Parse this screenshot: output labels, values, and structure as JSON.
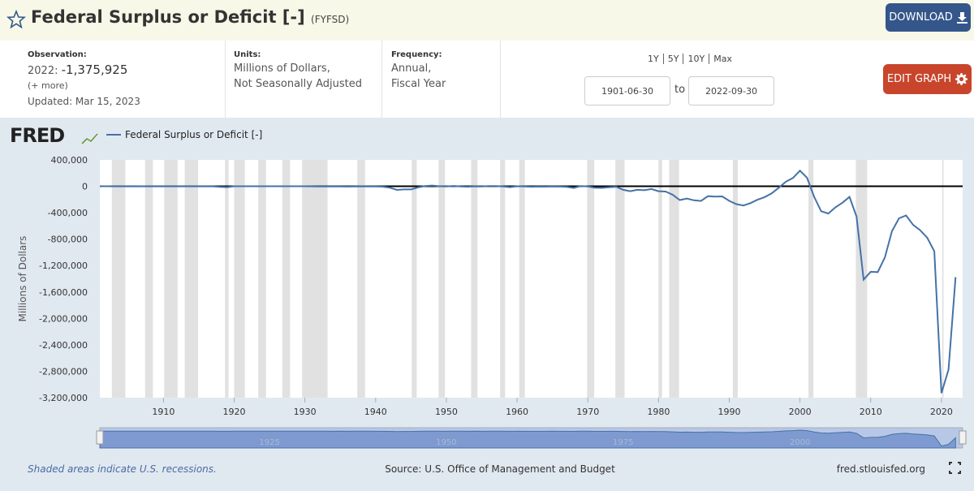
{
  "header": {
    "title": "Federal Surplus or Deficit [-]",
    "series_id": "(FYFSD)",
    "download": "DOWNLOAD"
  },
  "info": {
    "observation": {
      "label": "Observation:",
      "date": "2022:",
      "value": "-1,375,925",
      "more": "(+ more)",
      "updated": "Updated: Mar 15, 2023"
    },
    "units": {
      "label": "Units:",
      "lines": [
        "Millions of Dollars,",
        "Not Seasonally Adjusted"
      ]
    },
    "frequency": {
      "label": "Frequency:",
      "lines": [
        "Annual,",
        "Fiscal Year"
      ]
    }
  },
  "range": {
    "buttons": [
      "1Y",
      "5Y",
      "10Y",
      "Max"
    ],
    "start": "1901-06-30",
    "to": "to",
    "end": "2022-09-30",
    "edit": "EDIT GRAPH"
  },
  "chart_data": {
    "type": "line",
    "logo": "FRED",
    "y_label": "Millions of Dollars",
    "x": [
      1901,
      1902,
      1903,
      1904,
      1905,
      1906,
      1907,
      1908,
      1909,
      1910,
      1911,
      1912,
      1913,
      1914,
      1915,
      1916,
      1917,
      1918,
      1919,
      1920,
      1921,
      1922,
      1923,
      1924,
      1925,
      1926,
      1927,
      1928,
      1929,
      1930,
      1931,
      1932,
      1933,
      1934,
      1935,
      1936,
      1937,
      1938,
      1939,
      1940,
      1941,
      1942,
      1943,
      1944,
      1945,
      1946,
      1947,
      1948,
      1949,
      1950,
      1951,
      1952,
      1953,
      1954,
      1955,
      1956,
      1957,
      1958,
      1959,
      1960,
      1961,
      1962,
      1963,
      1964,
      1965,
      1966,
      1967,
      1968,
      1969,
      1970,
      1971,
      1972,
      1973,
      1974,
      1975,
      1976,
      1977,
      1978,
      1979,
      1980,
      1981,
      1982,
      1983,
      1984,
      1985,
      1986,
      1987,
      1988,
      1989,
      1990,
      1991,
      1992,
      1993,
      1994,
      1995,
      1996,
      1997,
      1998,
      1999,
      2000,
      2001,
      2002,
      2003,
      2004,
      2005,
      2006,
      2007,
      2008,
      2009,
      2010,
      2011,
      2012,
      2013,
      2014,
      2015,
      2016,
      2017,
      2018,
      2019,
      2020,
      2021,
      2022
    ],
    "series": [
      {
        "name": "Federal Surplus or Deficit [-]",
        "color": "#4572a7",
        "values": [
          63,
          77,
          45,
          -43,
          -23,
          25,
          87,
          -57,
          -89,
          -18,
          11,
          3,
          0,
          0,
          -63,
          48,
          -853,
          -9032,
          -13363,
          291,
          509,
          736,
          713,
          963,
          717,
          865,
          1155,
          939,
          734,
          738,
          -462,
          -2735,
          -2602,
          -3586,
          -2803,
          -4304,
          -2193,
          -89,
          -2846,
          -2920,
          -4941,
          -20503,
          -54554,
          -47557,
          -47553,
          -15936,
          4018,
          11796,
          580,
          -3119,
          6102,
          -1519,
          -6493,
          -1154,
          -2993,
          3947,
          3412,
          -2769,
          -12849,
          301,
          -3335,
          -7146,
          -4756,
          -5915,
          -1411,
          -3698,
          -8643,
          -25161,
          3242,
          -2842,
          -23033,
          -23373,
          -14908,
          -6135,
          -53242,
          -73732,
          -53659,
          -59185,
          -40726,
          -73830,
          -78968,
          -127977,
          -207802,
          -185367,
          -212308,
          -221227,
          -149730,
          -155178,
          -152639,
          -221036,
          -269238,
          -290321,
          -255051,
          -203186,
          -163952,
          -107431,
          -21884,
          69270,
          125610,
          236241,
          128236,
          -157758,
          -377585,
          -412727,
          -318346,
          -248181,
          -160701,
          -458553,
          -1412688,
          -1294373,
          -1299599,
          -1076573,
          -679775,
          -484602,
          -441960,
          -584651,
          -665446,
          -779137,
          -983588,
          -3131917,
          -2775310,
          -1375925
        ]
      }
    ],
    "xlim": [
      1901,
      2023
    ],
    "ylim": [
      -3200000,
      400000
    ],
    "xticks": [
      1910,
      1920,
      1930,
      1940,
      1950,
      1960,
      1970,
      1980,
      1990,
      2000,
      2010,
      2020
    ],
    "yticks": [
      {
        "value": 400000,
        "label": "400,000"
      },
      0,
      {
        "value": -400000,
        "label": "-400,000"
      },
      {
        "value": -800000,
        "label": "-800,000"
      },
      {
        "value": -1200000,
        "label": "-1,200,000"
      },
      {
        "value": -1600000,
        "label": "-1,600,000"
      },
      {
        "value": -2000000,
        "label": "-2,000,000"
      },
      {
        "value": -2400000,
        "label": "-2,400,000"
      },
      {
        "value": -2800000,
        "label": "-2,800,000"
      },
      {
        "value": -3200000,
        "label": "-3,200,000"
      }
    ],
    "grid": false,
    "recession_color": "#e1e1e1",
    "recessions": [
      [
        1902.7,
        1904.6
      ],
      [
        1907.4,
        1908.5
      ],
      [
        1910.1,
        1912.0
      ],
      [
        1913.0,
        1914.9
      ],
      [
        1918.7,
        1919.2
      ],
      [
        1920.0,
        1921.5
      ],
      [
        1923.4,
        1924.5
      ],
      [
        1926.8,
        1927.9
      ],
      [
        1929.6,
        1933.2
      ],
      [
        1937.4,
        1938.5
      ],
      [
        1945.1,
        1945.8
      ],
      [
        1948.9,
        1949.8
      ],
      [
        1953.5,
        1954.4
      ],
      [
        1957.6,
        1958.3
      ],
      [
        1960.3,
        1961.1
      ],
      [
        1969.9,
        1970.9
      ],
      [
        1973.9,
        1975.2
      ],
      [
        1980.0,
        1980.5
      ],
      [
        1981.5,
        1982.9
      ],
      [
        1990.5,
        1991.2
      ],
      [
        2001.2,
        2001.9
      ],
      [
        2007.9,
        2009.5
      ],
      [
        2020.1,
        2020.3
      ]
    ],
    "navigator_ticks": [
      1925,
      1950,
      1975,
      2000
    ]
  },
  "footer": {
    "note": "Shaded areas indicate U.S. recessions.",
    "source": "Source: U.S. Office of Management and Budget",
    "site": "fred.stlouisfed.org"
  }
}
